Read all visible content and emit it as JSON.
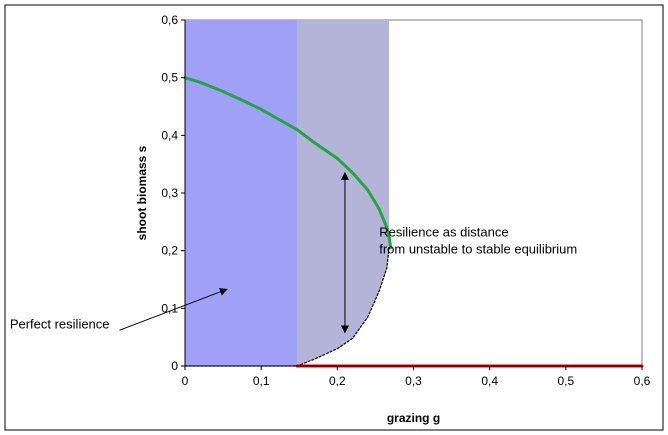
{
  "chart_data": {
    "type": "line",
    "xlabel": "grazing g",
    "ylabel": "shoot biomass s",
    "xlim": [
      0,
      0.6
    ],
    "ylim": [
      0,
      0.6
    ],
    "x_ticks": [
      0,
      0.1,
      0.2,
      0.3,
      0.4,
      0.5,
      0.6
    ],
    "y_ticks": [
      0,
      0.1,
      0.2,
      0.3,
      0.4,
      0.5,
      0.6
    ],
    "x_tick_labels": [
      "0",
      "0,1",
      "0,2",
      "0,3",
      "0,4",
      "0,5",
      "0,6"
    ],
    "y_tick_labels": [
      "0",
      "0,1",
      "0,2",
      "0,3",
      "0,4",
      "0,5",
      "0,6"
    ],
    "grid": false,
    "regions": [
      {
        "x_range": [
          0,
          0.147
        ],
        "color": "#a0a0f6"
      },
      {
        "x_range": [
          0.147,
          0.268
        ],
        "color": "#b4b4d8",
        "bounded_below_by": "unstable_equilibrium"
      }
    ],
    "series": [
      {
        "color": "#22a640",
        "style": "solid",
        "points": [
          [
            0,
            0.5
          ],
          [
            0.02,
            0.492
          ],
          [
            0.05,
            0.476
          ],
          [
            0.08,
            0.458
          ],
          [
            0.1,
            0.445
          ],
          [
            0.12,
            0.43
          ],
          [
            0.147,
            0.41
          ],
          [
            0.17,
            0.387
          ],
          [
            0.2,
            0.36
          ],
          [
            0.22,
            0.335
          ],
          [
            0.24,
            0.305
          ],
          [
            0.255,
            0.272
          ],
          [
            0.265,
            0.24
          ],
          [
            0.268,
            0.225
          ],
          [
            0.27,
            0.205
          ]
        ]
      },
      {
        "color": "#000000",
        "style": "dotted",
        "points": [
          [
            0.147,
            0
          ],
          [
            0.17,
            0.012
          ],
          [
            0.2,
            0.03
          ],
          [
            0.22,
            0.048
          ],
          [
            0.24,
            0.085
          ],
          [
            0.255,
            0.13
          ],
          [
            0.265,
            0.17
          ],
          [
            0.268,
            0.205
          ]
        ]
      },
      {
        "color": "#000000",
        "style": "dotted",
        "points": [
          [
            0,
            0
          ],
          [
            0.147,
            0
          ]
        ]
      },
      {
        "color": "#ff0000",
        "style": "solid",
        "points": [
          [
            0.147,
            0
          ],
          [
            0.6,
            0
          ]
        ]
      }
    ],
    "annotations": [
      {
        "text": "Resilience as distance",
        "x": 0.255,
        "y": 0.225
      },
      {
        "text": "from unstable to stable equilibrium",
        "x": 0.255,
        "y": 0.195
      },
      {
        "text": "Perfect resilience",
        "x": -0.23,
        "y": 0.065
      }
    ],
    "arrows": [
      {
        "from": [
          0.21,
          0.335
        ],
        "to": [
          0.21,
          0.058
        ],
        "double": true
      },
      {
        "from": [
          -0.086,
          0.062
        ],
        "to": [
          0.055,
          0.133
        ],
        "double": false
      }
    ]
  }
}
